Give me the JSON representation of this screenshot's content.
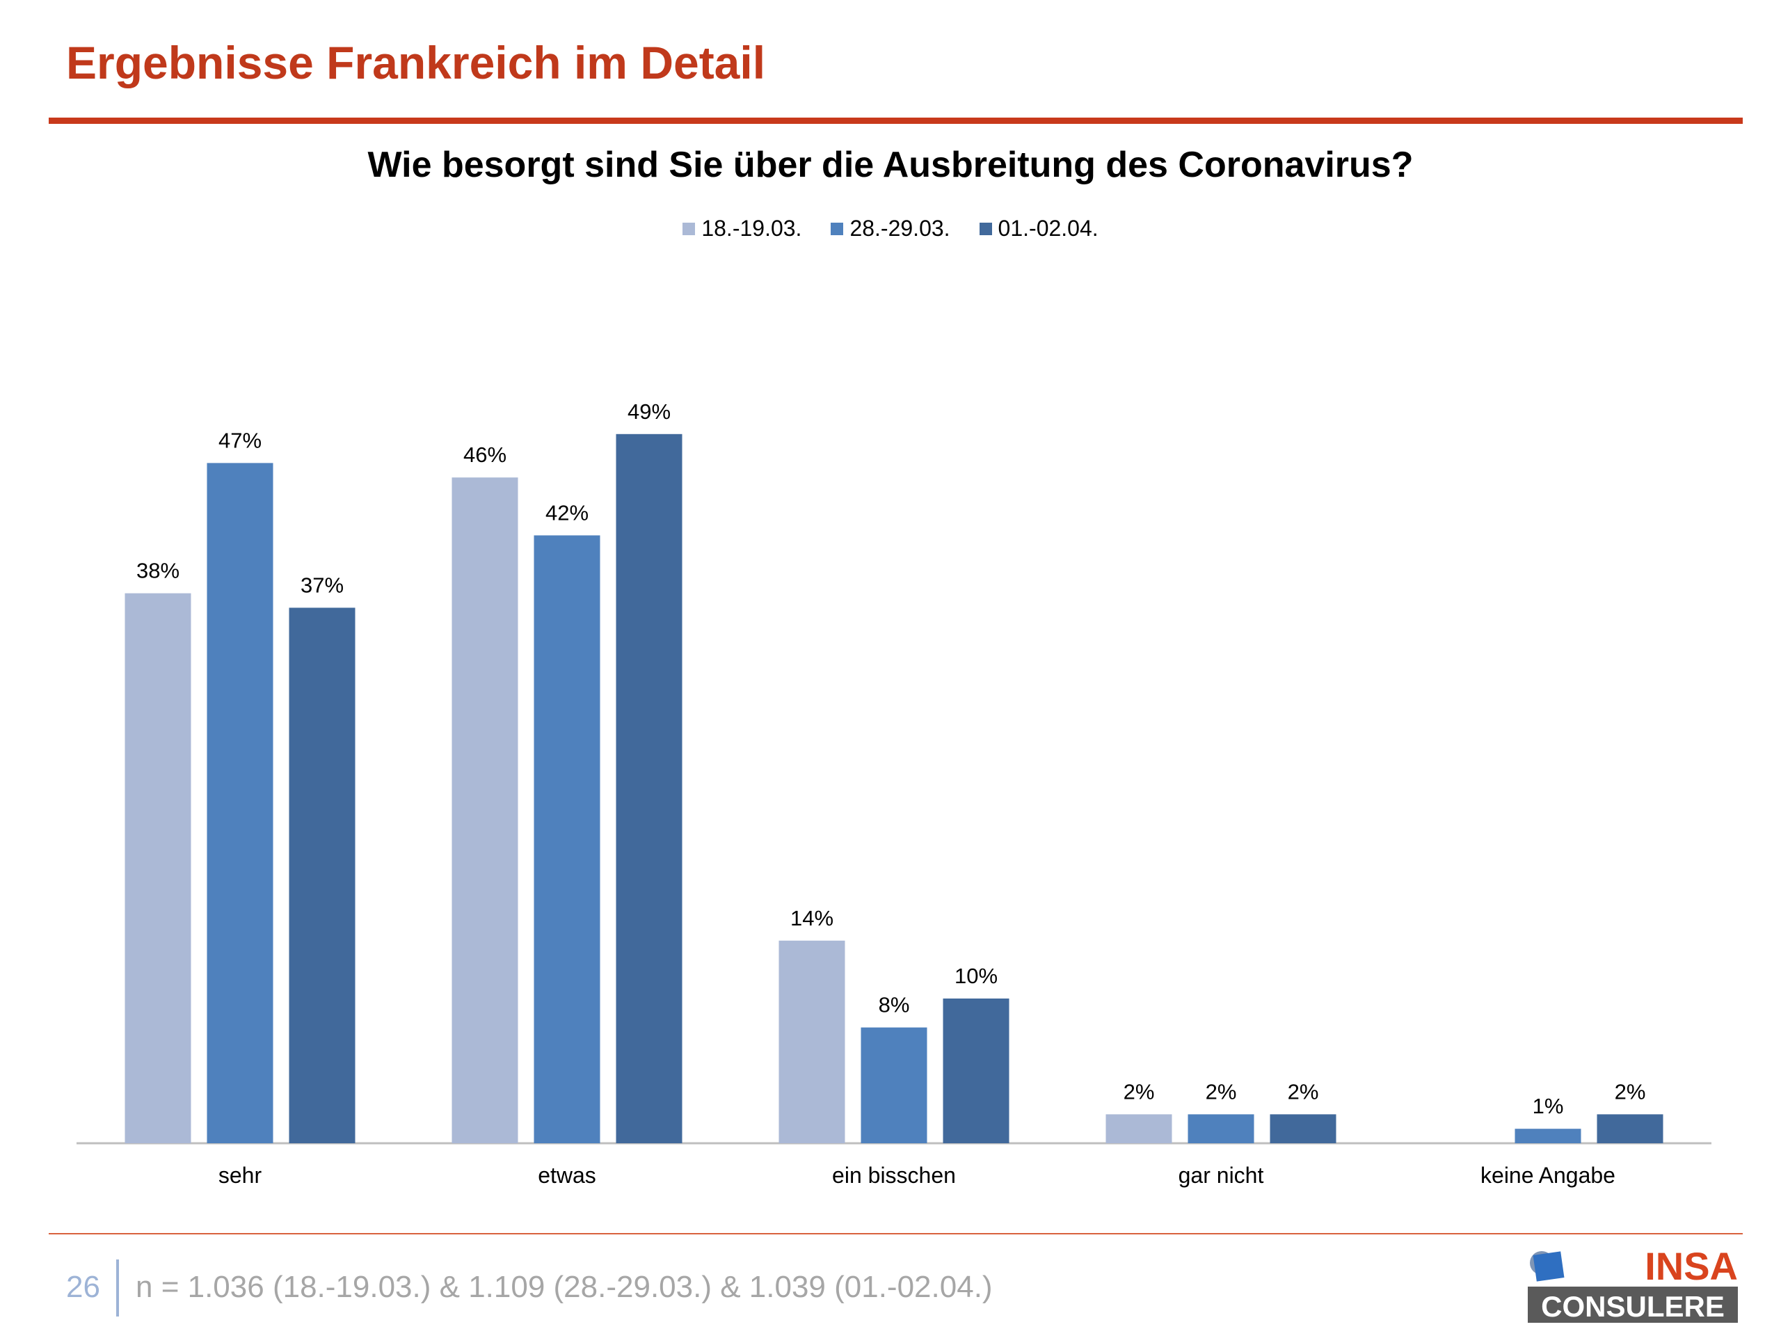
{
  "page": {
    "title": "Ergebnisse Frankreich im Detail",
    "page_number": "26",
    "sample_note": "n = 1.036 (18.-19.03.) & 1.109 (28.-29.03.) & 1.039 (01.-02.04.)"
  },
  "logo": {
    "line1": "INSA",
    "line2": "CONSULERE"
  },
  "colors": {
    "accent": "#c8391b",
    "series": [
      "#abb9d6",
      "#4f81bd",
      "#41699b"
    ],
    "axis": "#bfbfbf"
  },
  "chart_data": {
    "type": "bar",
    "title": "Wie besorgt sind Sie über die Ausbreitung des Coronavirus?",
    "xlabel": "",
    "ylabel": "",
    "ylim": [
      0,
      55
    ],
    "grid": false,
    "legend_position": "top-center",
    "value_suffix": "%",
    "categories": [
      "sehr",
      "etwas",
      "ein bisschen",
      "gar nicht",
      "keine Angabe"
    ],
    "series": [
      {
        "name": "18.-19.03.",
        "values": [
          38,
          46,
          14,
          2,
          null
        ]
      },
      {
        "name": "28.-29.03.",
        "values": [
          47,
          42,
          8,
          2,
          1
        ]
      },
      {
        "name": "01.-02.04.",
        "values": [
          37,
          49,
          10,
          2,
          2
        ]
      }
    ]
  }
}
